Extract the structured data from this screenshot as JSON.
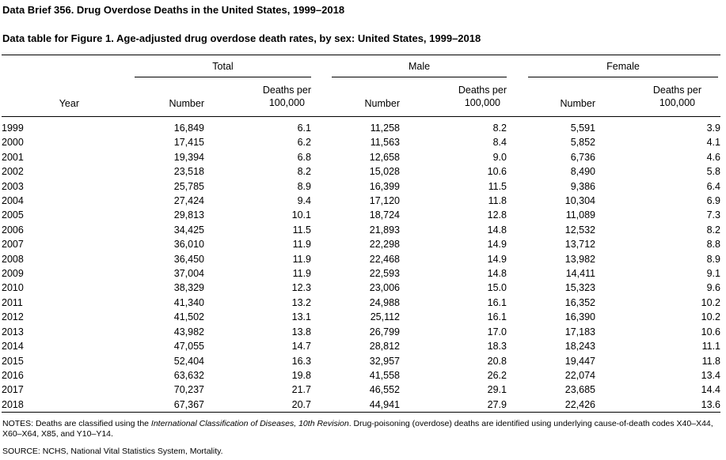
{
  "page": {
    "title": "Data Brief 356. Drug Overdose Deaths in the United States, 1999–2018",
    "table_title": "Data table for Figure 1. Age-adjusted drug overdose death rates, by sex: United States, 1999–2018"
  },
  "table": {
    "groups": [
      {
        "label": "Total"
      },
      {
        "label": "Male"
      },
      {
        "label": "Female"
      }
    ],
    "columns": {
      "year": "Year",
      "number": "Number",
      "rate_line1": "Deaths per",
      "rate_line2": "100,000"
    },
    "rows": [
      {
        "year": "1999",
        "total_number": "16,849",
        "total_rate": "6.1",
        "male_number": "11,258",
        "male_rate": "8.2",
        "female_number": "5,591",
        "female_rate": "3.9"
      },
      {
        "year": "2000",
        "total_number": "17,415",
        "total_rate": "6.2",
        "male_number": "11,563",
        "male_rate": "8.4",
        "female_number": "5,852",
        "female_rate": "4.1"
      },
      {
        "year": "2001",
        "total_number": "19,394",
        "total_rate": "6.8",
        "male_number": "12,658",
        "male_rate": "9.0",
        "female_number": "6,736",
        "female_rate": "4.6"
      },
      {
        "year": "2002",
        "total_number": "23,518",
        "total_rate": "8.2",
        "male_number": "15,028",
        "male_rate": "10.6",
        "female_number": "8,490",
        "female_rate": "5.8"
      },
      {
        "year": "2003",
        "total_number": "25,785",
        "total_rate": "8.9",
        "male_number": "16,399",
        "male_rate": "11.5",
        "female_number": "9,386",
        "female_rate": "6.4"
      },
      {
        "year": "2004",
        "total_number": "27,424",
        "total_rate": "9.4",
        "male_number": "17,120",
        "male_rate": "11.8",
        "female_number": "10,304",
        "female_rate": "6.9"
      },
      {
        "year": "2005",
        "total_number": "29,813",
        "total_rate": "10.1",
        "male_number": "18,724",
        "male_rate": "12.8",
        "female_number": "11,089",
        "female_rate": "7.3"
      },
      {
        "year": "2006",
        "total_number": "34,425",
        "total_rate": "11.5",
        "male_number": "21,893",
        "male_rate": "14.8",
        "female_number": "12,532",
        "female_rate": "8.2"
      },
      {
        "year": "2007",
        "total_number": "36,010",
        "total_rate": "11.9",
        "male_number": "22,298",
        "male_rate": "14.9",
        "female_number": "13,712",
        "female_rate": "8.8"
      },
      {
        "year": "2008",
        "total_number": "36,450",
        "total_rate": "11.9",
        "male_number": "22,468",
        "male_rate": "14.9",
        "female_number": "13,982",
        "female_rate": "8.9"
      },
      {
        "year": "2009",
        "total_number": "37,004",
        "total_rate": "11.9",
        "male_number": "22,593",
        "male_rate": "14.8",
        "female_number": "14,411",
        "female_rate": "9.1"
      },
      {
        "year": "2010",
        "total_number": "38,329",
        "total_rate": "12.3",
        "male_number": "23,006",
        "male_rate": "15.0",
        "female_number": "15,323",
        "female_rate": "9.6"
      },
      {
        "year": "2011",
        "total_number": "41,340",
        "total_rate": "13.2",
        "male_number": "24,988",
        "male_rate": "16.1",
        "female_number": "16,352",
        "female_rate": "10.2"
      },
      {
        "year": "2012",
        "total_number": "41,502",
        "total_rate": "13.1",
        "male_number": "25,112",
        "male_rate": "16.1",
        "female_number": "16,390",
        "female_rate": "10.2"
      },
      {
        "year": "2013",
        "total_number": "43,982",
        "total_rate": "13.8",
        "male_number": "26,799",
        "male_rate": "17.0",
        "female_number": "17,183",
        "female_rate": "10.6"
      },
      {
        "year": "2014",
        "total_number": "47,055",
        "total_rate": "14.7",
        "male_number": "28,812",
        "male_rate": "18.3",
        "female_number": "18,243",
        "female_rate": "11.1"
      },
      {
        "year": "2015",
        "total_number": "52,404",
        "total_rate": "16.3",
        "male_number": "32,957",
        "male_rate": "20.8",
        "female_number": "19,447",
        "female_rate": "11.8"
      },
      {
        "year": "2016",
        "total_number": "63,632",
        "total_rate": "19.8",
        "male_number": "41,558",
        "male_rate": "26.2",
        "female_number": "22,074",
        "female_rate": "13.4"
      },
      {
        "year": "2017",
        "total_number": "70,237",
        "total_rate": "21.7",
        "male_number": "46,552",
        "male_rate": "29.1",
        "female_number": "23,685",
        "female_rate": "14.4"
      },
      {
        "year": "2018",
        "total_number": "67,367",
        "total_rate": "20.7",
        "male_number": "44,941",
        "male_rate": "27.9",
        "female_number": "22,426",
        "female_rate": "13.6"
      }
    ]
  },
  "footer": {
    "notes_prefix": "NOTES: Deaths are classified using the ",
    "notes_italic": "International Classification of Diseases, 10th Revision",
    "notes_suffix": ". Drug-poisoning (overdose) deaths are identified using underlying cause-of-death codes X40–X44, X60–X64, X85, and Y10–Y14.",
    "source": "SOURCE: NCHS, National Vital Statistics System, Mortality."
  }
}
